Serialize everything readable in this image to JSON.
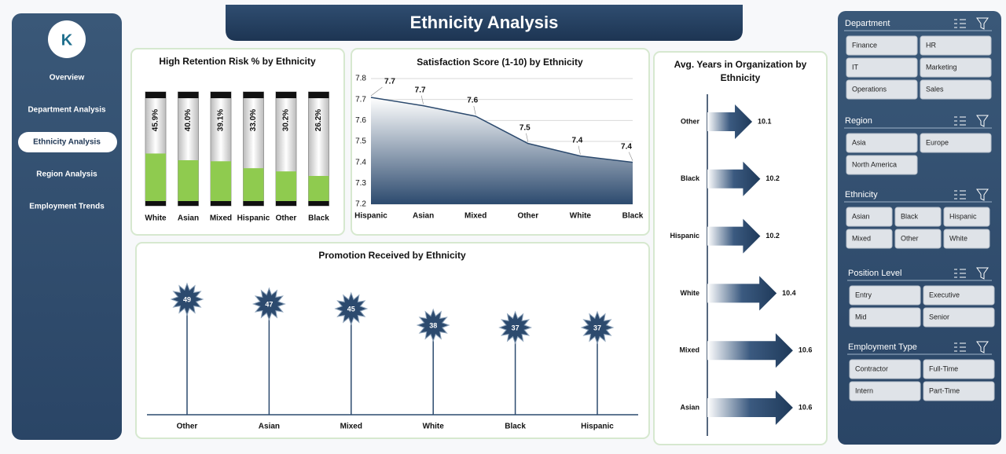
{
  "header": {
    "title": "Ethnicity Analysis"
  },
  "sidebar": {
    "items": [
      "Overview",
      "Department Analysis",
      "Ethnicity Analysis",
      "Region Analysis",
      "Employment Trends"
    ],
    "active": 2
  },
  "filters": [
    {
      "title": "Department",
      "options": [
        "Finance",
        "HR",
        "IT",
        "Marketing",
        "Operations",
        "Sales"
      ]
    },
    {
      "title": "Region",
      "options": [
        "Asia",
        "Europe",
        "North America"
      ]
    },
    {
      "title": "Ethnicity",
      "options": [
        "Asian",
        "Black",
        "Hispanic",
        "Mixed",
        "Other",
        "White"
      ]
    },
    {
      "title": "Position Level",
      "options": [
        "Entry",
        "Executive",
        "Mid",
        "Senior"
      ]
    },
    {
      "title": "Employment Type",
      "options": [
        "Contractor",
        "Full-Time",
        "Intern",
        "Part-Time"
      ]
    }
  ],
  "chart_data": [
    {
      "type": "tube",
      "title": "High Retention Risk % by Ethnicity",
      "categories": [
        "White",
        "Asian",
        "Mixed",
        "Hispanic",
        "Other",
        "Black"
      ],
      "values": [
        45.9,
        40.0,
        39.1,
        33.0,
        30.2,
        26.2
      ],
      "value_labels": [
        "45.9%",
        "40.0%",
        "39.1%",
        "33.0%",
        "30.2%",
        "26.2%"
      ],
      "ylim": [
        0,
        100
      ],
      "color": "#8fcb4f"
    },
    {
      "type": "area",
      "title": "Satisfaction Score (1-10) by Ethnicity",
      "categories": [
        "Hispanic",
        "Asian",
        "Mixed",
        "Other",
        "White",
        "Black"
      ],
      "values": [
        7.71,
        7.67,
        7.62,
        7.49,
        7.43,
        7.4
      ],
      "value_labels": [
        "7.7",
        "7.7",
        "7.6",
        "7.5",
        "7.4",
        "7.4"
      ],
      "ylim": [
        7.2,
        7.8
      ],
      "yticks": [
        7.2,
        7.3,
        7.4,
        7.5,
        7.6,
        7.7,
        7.8
      ],
      "grid": true,
      "color": "#2c4a6e"
    },
    {
      "type": "lollipop",
      "title": "Promotion Received by Ethnicity",
      "categories": [
        "Other",
        "Asian",
        "Mixed",
        "White",
        "Black",
        "Hispanic"
      ],
      "values": [
        49,
        47,
        45,
        38,
        37,
        37
      ],
      "ylim": [
        0,
        60
      ],
      "color": "#2c4a6e"
    },
    {
      "type": "harrow",
      "title": "Avg. Years in Organization by Ethnicity",
      "categories": [
        "Other",
        "Black",
        "Hispanic",
        "White",
        "Mixed",
        "Asian"
      ],
      "values": [
        10.1,
        10.2,
        10.2,
        10.4,
        10.6,
        10.6
      ],
      "xlim": [
        9.55,
        10.9
      ],
      "color": "#2c4a6e"
    }
  ]
}
